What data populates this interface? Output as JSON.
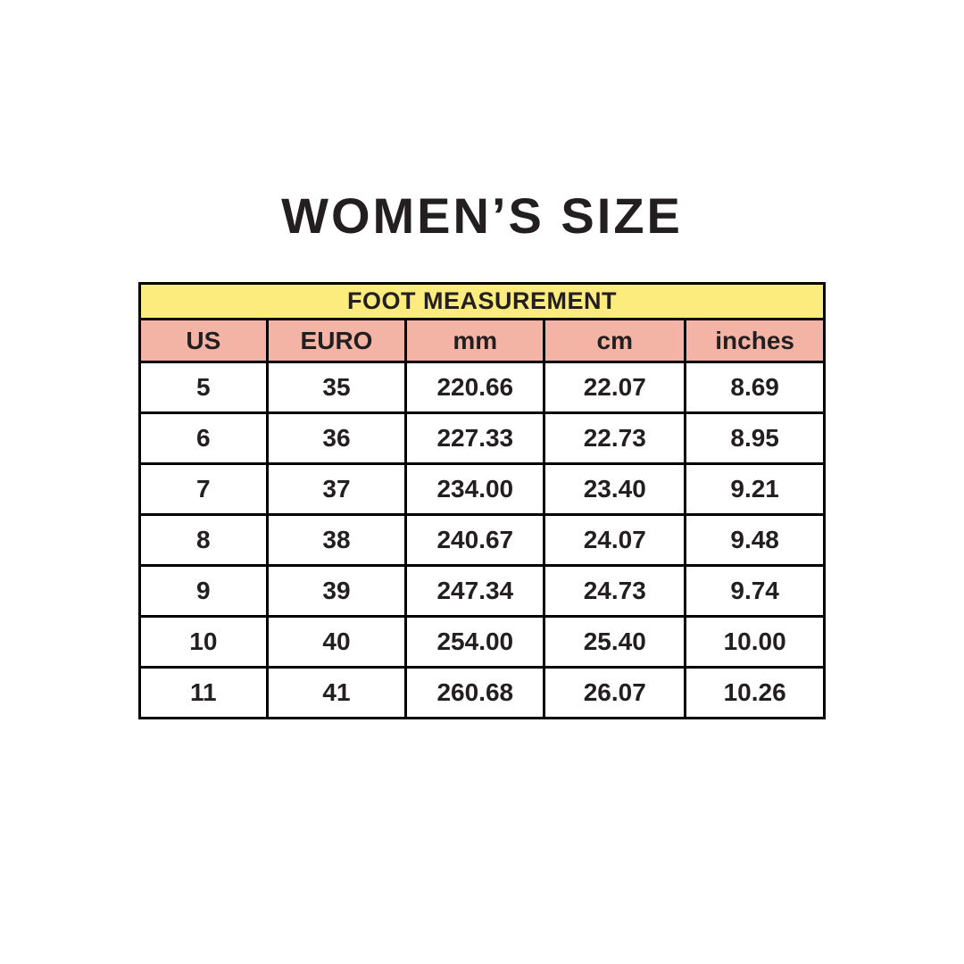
{
  "title": "WOMEN’S SIZE",
  "colors": {
    "banner_bg": "#fbec7d",
    "column_header_bg": "#f4b4a5",
    "text": "#231f20",
    "border": "#000000",
    "page_bg": "#ffffff"
  },
  "table": {
    "banner": "FOOT MEASUREMENT",
    "columns": [
      "US",
      "EURO",
      "mm",
      "cm",
      "inches"
    ],
    "rows": [
      [
        "5",
        "35",
        "220.66",
        "22.07",
        "8.69"
      ],
      [
        "6",
        "36",
        "227.33",
        "22.73",
        "8.95"
      ],
      [
        "7",
        "37",
        "234.00",
        "23.40",
        "9.21"
      ],
      [
        "8",
        "38",
        "240.67",
        "24.07",
        "9.48"
      ],
      [
        "9",
        "39",
        "247.34",
        "24.73",
        "9.74"
      ],
      [
        "10",
        "40",
        "254.00",
        "25.40",
        "10.00"
      ],
      [
        "11",
        "41",
        "260.68",
        "26.07",
        "10.26"
      ]
    ]
  }
}
